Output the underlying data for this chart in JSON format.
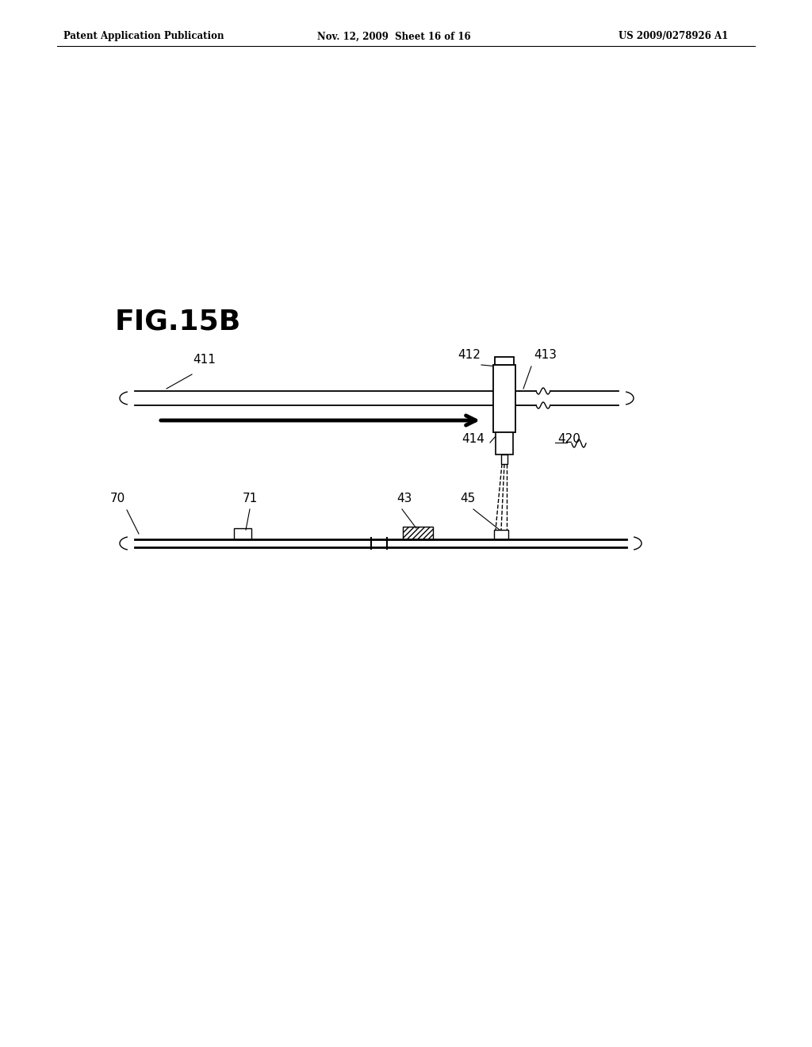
{
  "bg_color": "#ffffff",
  "fig_label": "FIG.15B",
  "header_left": "Patent Application Publication",
  "header_mid": "Nov. 12, 2009  Sheet 16 of 16",
  "header_right": "US 2009/0278926 A1"
}
